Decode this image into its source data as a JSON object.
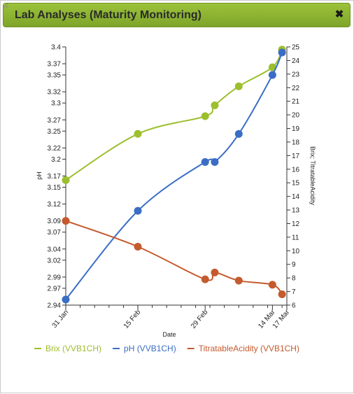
{
  "window": {
    "title": "Lab Analyses (Maturity Monitoring)",
    "close_icon": "close-icon"
  },
  "chart_data": {
    "type": "line",
    "xlabel": "Date",
    "ylabel_left": "pH",
    "ylabel_right": "Brix; TitratableAcidity",
    "x_ticks": [
      {
        "label": "31 Jan",
        "date": "2016-01-31"
      },
      {
        "label": "15 Feb",
        "date": "2016-02-15"
      },
      {
        "label": "29 Feb",
        "date": "2016-02-29"
      },
      {
        "label": "14 Mar",
        "date": "2016-03-14"
      },
      {
        "label": "17 Mar",
        "date": "2016-03-17"
      }
    ],
    "xlim": [
      "2016-01-31",
      "2016-03-17"
    ],
    "ylim_left": [
      2.94,
      3.4
    ],
    "left_ticks": [
      "2.94",
      "2.97",
      "2.99",
      "3.02",
      "3.04",
      "3.07",
      "3.09",
      "3.12",
      "3.15",
      "3.17",
      "3.2",
      "3.22",
      "3.25",
      "3.27",
      "3.3",
      "3.32",
      "3.35",
      "3.37",
      "3.4"
    ],
    "ylim_right": [
      6,
      25
    ],
    "right_ticks": [
      "6",
      "7",
      "8",
      "9",
      "10",
      "11",
      "12",
      "13",
      "14",
      "15",
      "16",
      "17",
      "18",
      "19",
      "20",
      "21",
      "22",
      "23",
      "24",
      "25"
    ],
    "series": [
      {
        "name": "Brix (VVB1CH)",
        "color": "#9cbf2e",
        "axis": "right",
        "points": [
          {
            "date": "2016-01-31",
            "value": 15.2
          },
          {
            "date": "2016-02-15",
            "value": 18.6
          },
          {
            "date": "2016-02-29",
            "value": 19.9
          },
          {
            "date": "2016-03-02",
            "value": 20.7
          },
          {
            "date": "2016-03-07",
            "value": 22.1
          },
          {
            "date": "2016-03-14",
            "value": 23.5
          },
          {
            "date": "2016-03-16",
            "value": 24.8
          }
        ]
      },
      {
        "name": "pH (VVB1CH)",
        "color": "#3a6ec5",
        "axis": "left",
        "points": [
          {
            "date": "2016-01-31",
            "value": 2.95
          },
          {
            "date": "2016-02-15",
            "value": 3.108
          },
          {
            "date": "2016-02-29",
            "value": 3.195
          },
          {
            "date": "2016-03-02",
            "value": 3.195
          },
          {
            "date": "2016-03-07",
            "value": 3.245
          },
          {
            "date": "2016-03-14",
            "value": 3.35
          },
          {
            "date": "2016-03-16",
            "value": 3.39
          }
        ]
      },
      {
        "name": "TitratableAcidity (VVB1CH)",
        "color": "#c45a2e",
        "axis": "right",
        "points": [
          {
            "date": "2016-01-31",
            "value": 12.2
          },
          {
            "date": "2016-02-15",
            "value": 10.3
          },
          {
            "date": "2016-02-29",
            "value": 7.9
          },
          {
            "date": "2016-03-02",
            "value": 8.4
          },
          {
            "date": "2016-03-07",
            "value": 7.8
          },
          {
            "date": "2016-03-14",
            "value": 7.5
          },
          {
            "date": "2016-03-16",
            "value": 6.8
          }
        ]
      }
    ],
    "legend_position": "bottom-left",
    "grid": false
  }
}
